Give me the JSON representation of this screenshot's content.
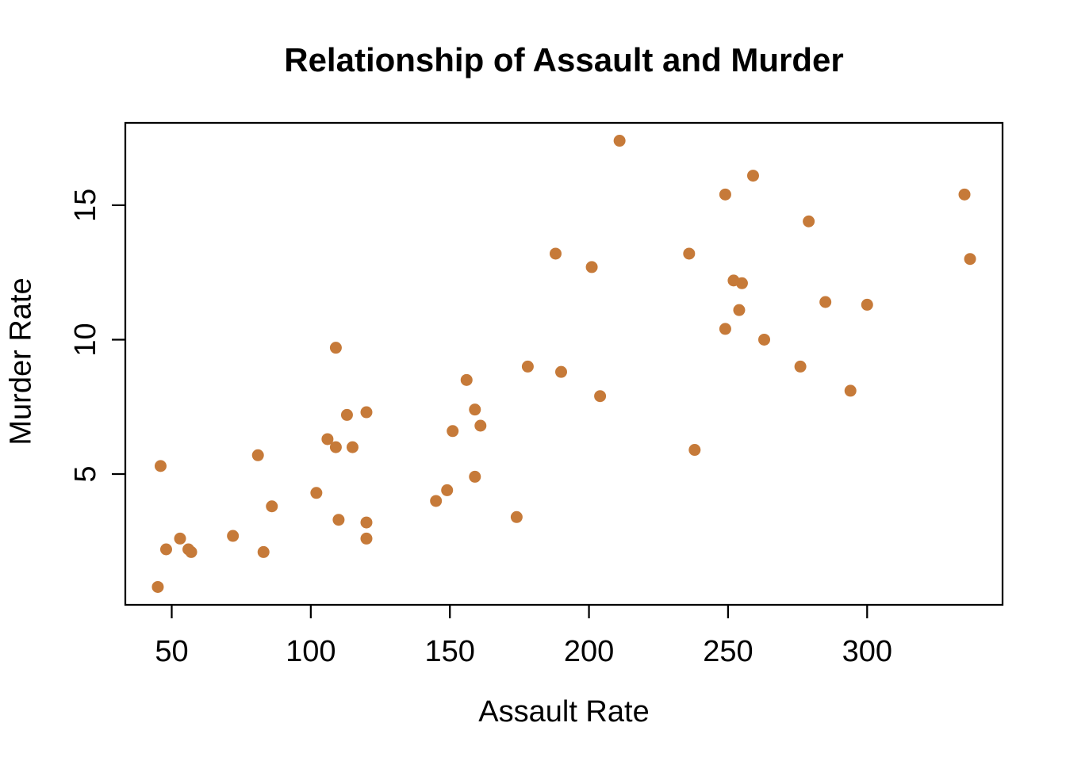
{
  "chart_data": {
    "type": "scatter",
    "title": "Relationship of Assault and Murder",
    "xlabel": "Assault Rate",
    "ylabel": "Murder Rate",
    "x_ticks": [
      50,
      100,
      150,
      200,
      250,
      300
    ],
    "y_ticks": [
      5,
      10,
      15
    ],
    "xlim": [
      33.32,
      348.68
    ],
    "ylim": [
      0.136,
      18.064
    ],
    "grid": "off",
    "legend": "none",
    "marker": {
      "shape": "filled-circle",
      "color": "#C67A39",
      "radius": 7.5
    },
    "axis_color": "#000000",
    "background_color": "#ffffff",
    "points": [
      [
        236,
        13.2
      ],
      [
        263,
        10.0
      ],
      [
        294,
        8.1
      ],
      [
        190,
        8.8
      ],
      [
        276,
        9.0
      ],
      [
        204,
        7.9
      ],
      [
        110,
        3.3
      ],
      [
        238,
        5.9
      ],
      [
        335,
        15.4
      ],
      [
        211,
        17.4
      ],
      [
        46,
        5.3
      ],
      [
        120,
        2.6
      ],
      [
        249,
        10.4
      ],
      [
        113,
        7.2
      ],
      [
        56,
        2.2
      ],
      [
        115,
        6.0
      ],
      [
        109,
        9.7
      ],
      [
        249,
        15.4
      ],
      [
        83,
        2.1
      ],
      [
        300,
        11.3
      ],
      [
        149,
        4.4
      ],
      [
        255,
        12.1
      ],
      [
        72,
        2.7
      ],
      [
        259,
        16.1
      ],
      [
        178,
        9.0
      ],
      [
        109,
        6.0
      ],
      [
        102,
        4.3
      ],
      [
        252,
        12.2
      ],
      [
        57,
        2.1
      ],
      [
        159,
        7.4
      ],
      [
        285,
        11.4
      ],
      [
        254,
        11.1
      ],
      [
        337,
        13.0
      ],
      [
        45,
        0.8
      ],
      [
        120,
        7.3
      ],
      [
        151,
        6.6
      ],
      [
        159,
        4.9
      ],
      [
        106,
        6.3
      ],
      [
        174,
        3.4
      ],
      [
        279,
        14.4
      ],
      [
        86,
        3.8
      ],
      [
        188,
        13.2
      ],
      [
        201,
        12.7
      ],
      [
        120,
        3.2
      ],
      [
        48,
        2.2
      ],
      [
        156,
        8.5
      ],
      [
        145,
        4.0
      ],
      [
        81,
        5.7
      ],
      [
        53,
        2.6
      ],
      [
        161,
        6.8
      ]
    ]
  }
}
